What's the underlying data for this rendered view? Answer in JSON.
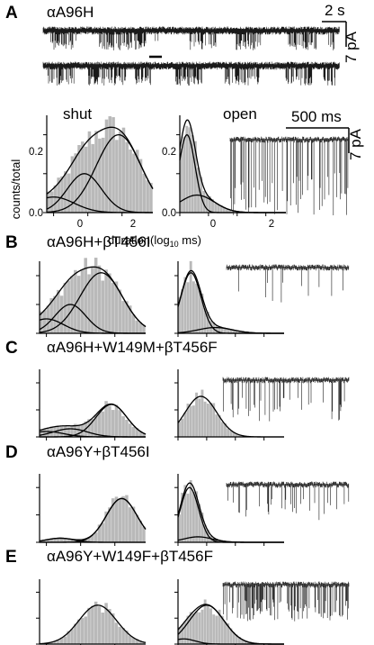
{
  "panels": [
    {
      "letter": "A",
      "title": "αA96H"
    },
    {
      "letter": "B",
      "title": "αA96H+βT456I"
    },
    {
      "letter": "C",
      "title": "αA96H+W149M+βT456F"
    },
    {
      "letter": "D",
      "title": "αA96Y+βT456I"
    },
    {
      "letter": "E",
      "title": "αA96Y+W149F+βT456F"
    }
  ],
  "panel_a": {
    "scale_time": "2 s",
    "scale_current": "7 pA",
    "inset_scale_time": "500 ms",
    "inset_scale_current": "7 pA",
    "hist_shut_label": "shut",
    "hist_open_label": "open",
    "ylabel": "counts/total",
    "xlabel_prefix": "duration(log",
    "xlabel_sub": "10",
    "xlabel_suffix": " ms)",
    "shut_xticks": [
      "0",
      "2"
    ],
    "open_xticks": [
      "0",
      "2"
    ],
    "shut_yticks": [
      "0.0",
      "0.2"
    ],
    "open_yticks": [
      "0.0",
      "0.2"
    ]
  },
  "chart_data": [
    {
      "panel": "A",
      "type": "bar",
      "name": "shut",
      "title": "shut",
      "xlabel": "duration(log10 ms)",
      "ylabel": "counts/total",
      "xlim": [
        -1.2,
        1.9
      ],
      "ylim": [
        0,
        0.25
      ],
      "gaussians": [
        [
          0.9,
          0.65,
          0.2
        ],
        [
          -0.1,
          0.5,
          0.1
        ],
        [
          -1.0,
          0.6,
          0.04
        ]
      ]
    },
    {
      "panel": "A",
      "type": "bar",
      "name": "open",
      "title": "open",
      "xlabel": "duration(log10 ms)",
      "ylabel": "counts/total",
      "xlim": [
        -1.0,
        2.7
      ],
      "ylim": [
        0,
        0.25
      ],
      "gaussians": [
        [
          -0.75,
          0.28,
          0.2
        ],
        [
          -0.4,
          0.6,
          0.045
        ]
      ]
    },
    {
      "panel": "B",
      "type": "bar",
      "name": "shut",
      "xlim": [
        -1.2,
        1.9
      ],
      "ylim": [
        0,
        0.25
      ],
      "gaussians": [
        [
          0.6,
          0.62,
          0.21
        ],
        [
          -0.3,
          0.45,
          0.1
        ],
        [
          -1.0,
          0.5,
          0.05
        ]
      ]
    },
    {
      "panel": "B",
      "type": "bar",
      "name": "open",
      "xlim": [
        -1.0,
        2.7
      ],
      "ylim": [
        0,
        0.25
      ],
      "gaussians": [
        [
          -0.55,
          0.35,
          0.21
        ],
        [
          0.3,
          0.6,
          0.02
        ]
      ]
    },
    {
      "panel": "C",
      "type": "bar",
      "name": "shut",
      "xlim": [
        -1.2,
        1.9
      ],
      "ylim": [
        0,
        0.25
      ],
      "gaussians": [
        [
          0.9,
          0.45,
          0.12
        ],
        [
          -0.3,
          0.5,
          0.03
        ],
        [
          -1.0,
          0.5,
          0.02
        ]
      ]
    },
    {
      "panel": "C",
      "type": "bar",
      "name": "open",
      "xlim": [
        -1.0,
        2.7
      ],
      "ylim": [
        0,
        0.25
      ],
      "gaussians": [
        [
          -0.2,
          0.55,
          0.15
        ]
      ]
    },
    {
      "panel": "D",
      "type": "bar",
      "name": "shut",
      "xlim": [
        -1.2,
        1.9
      ],
      "ylim": [
        0,
        0.25
      ],
      "gaussians": [
        [
          1.2,
          0.45,
          0.16
        ],
        [
          -0.6,
          0.4,
          0.015
        ]
      ]
    },
    {
      "panel": "D",
      "type": "bar",
      "name": "open",
      "xlim": [
        -1.0,
        2.7
      ],
      "ylim": [
        0,
        0.25
      ],
      "gaussians": [
        [
          -0.6,
          0.32,
          0.2
        ],
        [
          -0.3,
          0.5,
          0.02
        ]
      ]
    },
    {
      "panel": "E",
      "type": "bar",
      "name": "shut",
      "xlim": [
        -1.2,
        1.9
      ],
      "ylim": [
        0,
        0.25
      ],
      "gaussians": [
        [
          0.5,
          0.55,
          0.15
        ]
      ]
    },
    {
      "panel": "E",
      "type": "bar",
      "name": "open",
      "xlim": [
        -1.0,
        2.7
      ],
      "ylim": [
        0,
        0.25
      ],
      "gaussians": [
        [
          0.0,
          0.6,
          0.15
        ],
        [
          -0.8,
          0.4,
          0.02
        ]
      ]
    }
  ]
}
